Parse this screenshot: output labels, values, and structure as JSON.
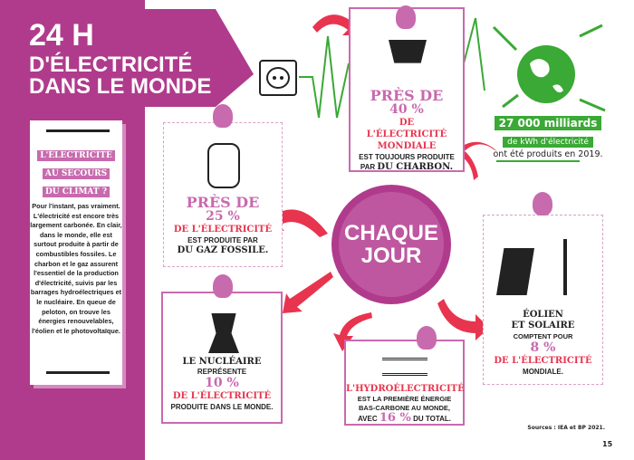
{
  "header": {
    "line1": "24 H",
    "line2": "D'ÉLECTRICITÉ",
    "line3": "DANS LE MONDE"
  },
  "sidebar": {
    "kicker": [
      "L'ÉLECTRICITÉ",
      "AU SECOURS",
      "DU CLIMAT ?"
    ],
    "body": "Pour l'instant, pas vraiment. L'électricité est encore très largement carbonée. En clair, dans le monde, elle est surtout produite à partir de combustibles fossiles. Le charbon et le gaz assurent l'essentiel de la production d'électricité, suivis par les barrages hydroélectriques et le nucléaire. En queue de peloton, on trouve les énergies renouvelables, l'éolien et le photovoltaïque."
  },
  "center": {
    "line1": "CHAQUE",
    "line2": "JOUR"
  },
  "coal": {
    "lead": "PRÈS DE",
    "value": "40 %",
    "share": "DE L'ÉLECTRICITÉ MONDIALE",
    "text": "EST TOUJOURS PRODUITE",
    "pre": "PAR",
    "source": "DU CHARBON."
  },
  "globe": {
    "value": "27 000 milliards",
    "unit": "de kWh d'électricité",
    "text": "ont été produits en 2019."
  },
  "gas": {
    "lead": "PRÈS DE",
    "value": "25 %",
    "share": "DE L'ÉLECTRICITÉ",
    "text": "EST PRODUITE PAR",
    "source": "DU GAZ FOSSILE."
  },
  "nuclear": {
    "source": "LE NUCLÉAIRE",
    "text": "REPRÉSENTE",
    "value": "10 %",
    "share": "DE L'ÉLECTRICITÉ",
    "text2": "PRODUITE DANS LE MONDE."
  },
  "hydro": {
    "source": "L'HYDROÉLECTRICITÉ",
    "text": "EST LA PREMIÈRE ÉNERGIE BAS-CARBONE AU MONDE,",
    "pre": "AVEC",
    "value": "16 %",
    "post": "DU TOTAL."
  },
  "wind": {
    "source1": "ÉOLIEN",
    "source2": "ET SOLAIRE",
    "text": "COMPTENT POUR",
    "value": "8 %",
    "share": "DE L'ÉLECTRICITÉ",
    "text2": "MONDIALE."
  },
  "footer": {
    "sources": "Sources : IEA et BP 2021.",
    "page": "15"
  },
  "colors": {
    "purple": "#b03b8c",
    "pink": "#c86aae",
    "red": "#e8344e",
    "green": "#3aa935"
  }
}
